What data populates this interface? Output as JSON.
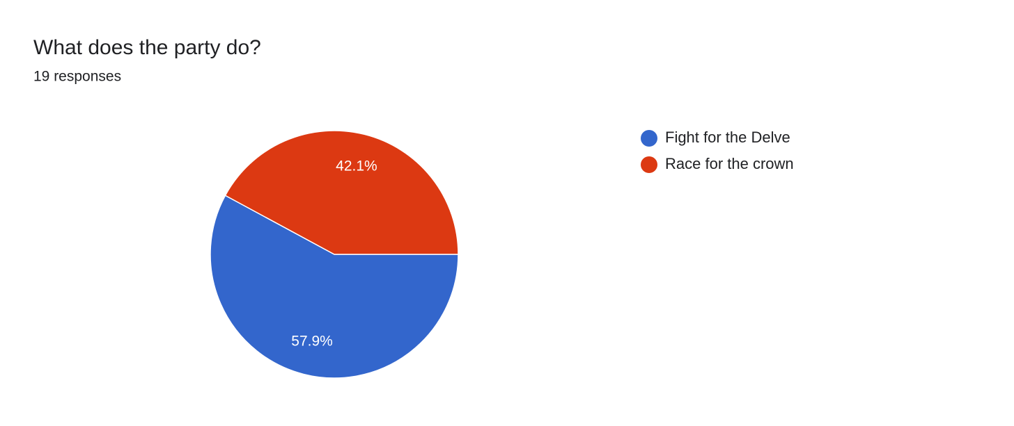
{
  "chart_data": {
    "type": "pie",
    "title": "What does the party do?",
    "subtitle": "19 responses",
    "categories": [
      "Fight for the Delve",
      "Race for the crown"
    ],
    "values": [
      57.9,
      42.1
    ],
    "value_labels": [
      "57.9%",
      "42.1%"
    ],
    "colors": [
      "#3366cc",
      "#dc3912"
    ],
    "legend": "right"
  }
}
